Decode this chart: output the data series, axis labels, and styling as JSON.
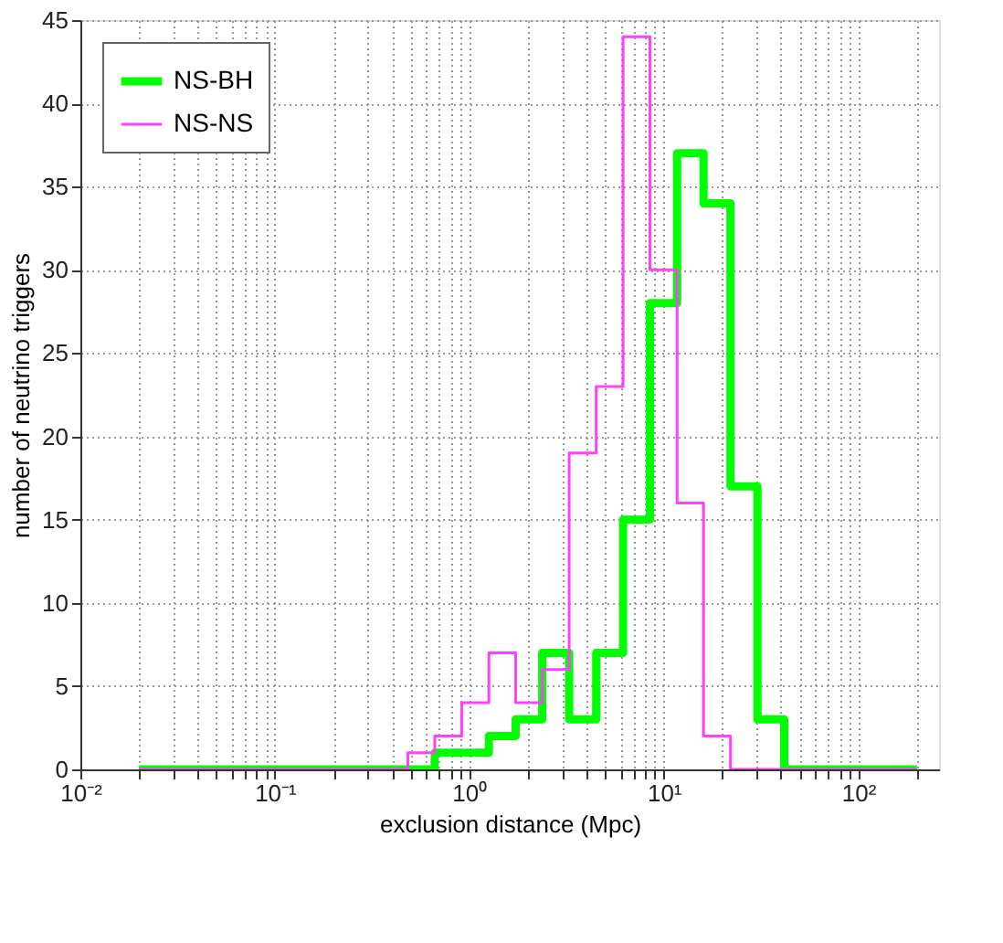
{
  "chart_data": {
    "type": "histogram",
    "xlabel": "exclusion distance (Mpc)",
    "ylabel": "number of neutrino triggers",
    "bins": [
      0.02,
      0.0275,
      0.0378,
      0.052,
      0.0715,
      0.0983,
      0.135,
      0.186,
      0.256,
      0.351,
      0.483,
      0.664,
      0.913,
      1.26,
      1.73,
      2.37,
      3.26,
      4.49,
      6.17,
      8.48,
      11.7,
      16.0,
      22.0,
      30.3,
      41.6,
      57.2,
      78.7,
      108,
      149,
      200
    ],
    "series": [
      {
        "name": "NS-BH",
        "color": "#00ff00",
        "values": [
          0,
          0,
          0,
          0,
          0,
          0,
          0,
          0,
          0,
          0,
          0,
          1,
          1,
          2,
          3,
          7,
          3,
          7,
          15,
          28,
          37,
          34,
          17,
          3,
          0,
          0,
          0,
          0,
          0
        ]
      },
      {
        "name": "NS-NS",
        "color": "#ff40ff",
        "values": [
          0,
          0,
          0,
          0,
          0,
          0,
          0,
          0,
          0,
          0,
          1,
          2,
          4,
          7,
          4,
          6,
          19,
          23,
          44,
          30,
          16,
          2,
          0,
          0,
          0,
          0,
          0,
          0,
          0
        ]
      }
    ],
    "log": "x",
    "xlim": [
      0.01,
      260
    ],
    "ylim": [
      0,
      45
    ],
    "xticks": [
      {
        "value": 0.01,
        "label": "10⁻²"
      },
      {
        "value": 0.02,
        "label": null
      },
      {
        "value": 0.03,
        "label": null
      },
      {
        "value": 0.04,
        "label": null
      },
      {
        "value": 0.05,
        "label": null
      },
      {
        "value": 0.06,
        "label": null
      },
      {
        "value": 0.07,
        "label": null
      },
      {
        "value": 0.08,
        "label": null
      },
      {
        "value": 0.09,
        "label": null
      },
      {
        "value": 0.1,
        "label": "10⁻¹"
      },
      {
        "value": 0.2,
        "label": null
      },
      {
        "value": 0.3,
        "label": null
      },
      {
        "value": 0.4,
        "label": null
      },
      {
        "value": 0.5,
        "label": null
      },
      {
        "value": 0.6,
        "label": null
      },
      {
        "value": 0.7,
        "label": null
      },
      {
        "value": 0.8,
        "label": null
      },
      {
        "value": 0.9,
        "label": null
      },
      {
        "value": 1,
        "label": "10⁰"
      },
      {
        "value": 2,
        "label": null
      },
      {
        "value": 3,
        "label": null
      },
      {
        "value": 4,
        "label": null
      },
      {
        "value": 5,
        "label": null
      },
      {
        "value": 6,
        "label": null
      },
      {
        "value": 7,
        "label": null
      },
      {
        "value": 8,
        "label": null
      },
      {
        "value": 9,
        "label": null
      },
      {
        "value": 10,
        "label": "10¹"
      },
      {
        "value": 20,
        "label": null
      },
      {
        "value": 30,
        "label": null
      },
      {
        "value": 40,
        "label": null
      },
      {
        "value": 50,
        "label": null
      },
      {
        "value": 60,
        "label": null
      },
      {
        "value": 70,
        "label": null
      },
      {
        "value": 80,
        "label": null
      },
      {
        "value": 90,
        "label": null
      },
      {
        "value": 100,
        "label": "10²"
      },
      {
        "value": 200,
        "label": null
      }
    ],
    "yticks": [
      0,
      5,
      10,
      15,
      20,
      25,
      30,
      35,
      40,
      45
    ],
    "grid": true,
    "legend": "top left"
  }
}
